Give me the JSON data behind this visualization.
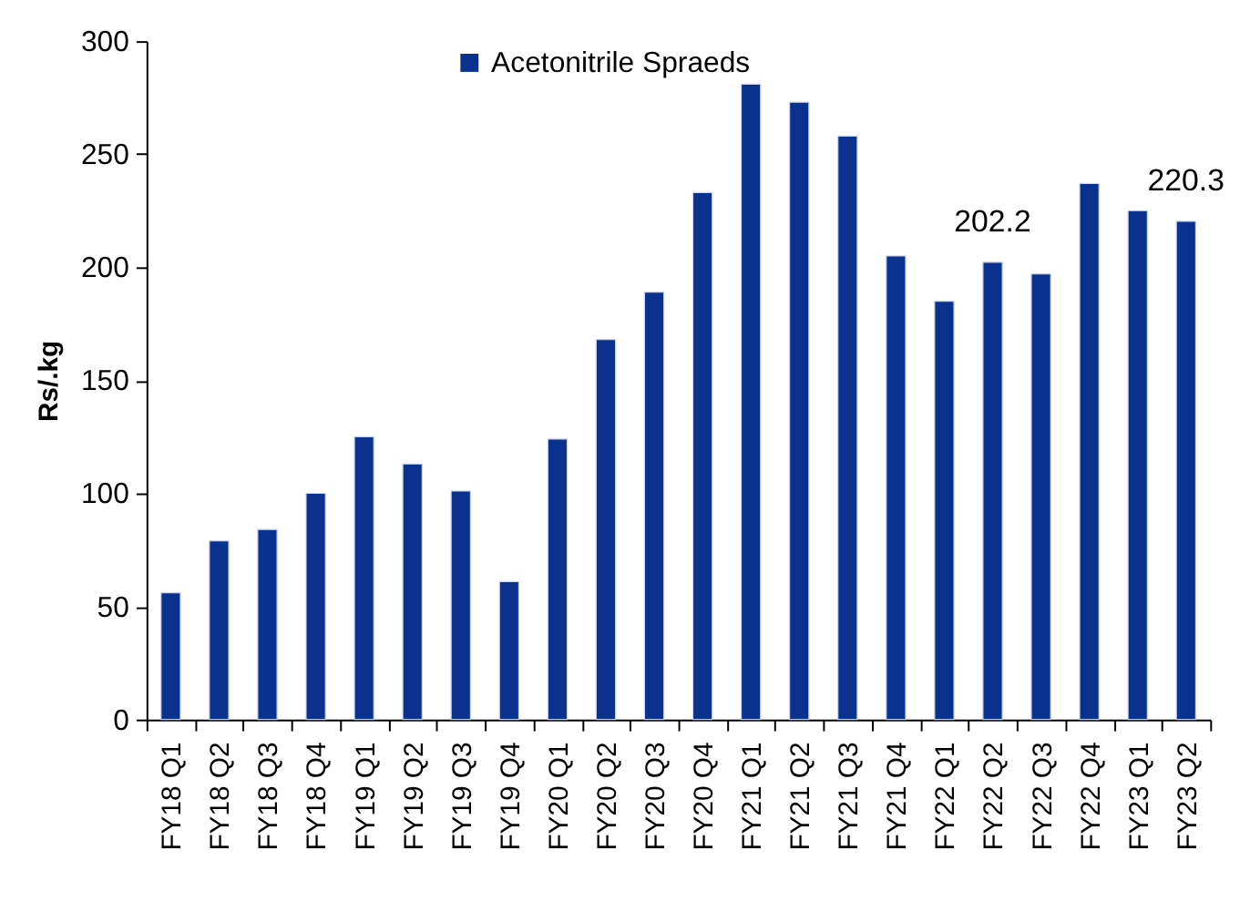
{
  "chart_data": {
    "type": "bar",
    "ylabel": "Rs/.kg",
    "categories": [
      "FY18 Q1",
      "FY18 Q2",
      "FY18 Q3",
      "FY18 Q4",
      "FY19 Q1",
      "FY19 Q2",
      "FY19 Q3",
      "FY19 Q4",
      "FY20 Q1",
      "FY20 Q2",
      "FY20 Q3",
      "FY20 Q4",
      "FY21 Q1",
      "FY21 Q2",
      "FY21 Q3",
      "FY21 Q4",
      "FY22 Q1",
      "FY22 Q2",
      "FY22 Q3",
      "FY22 Q4",
      "FY23 Q1",
      "FY23 Q2"
    ],
    "series": [
      {
        "name": "Acetonitrile Spraeds",
        "color": "#0b318f",
        "values": [
          56,
          79,
          84,
          100,
          125,
          113,
          101,
          61,
          124,
          168,
          189,
          233,
          281,
          273,
          258,
          205,
          185,
          202.2,
          197,
          237,
          225,
          220.3
        ],
        "value_labels": [
          null,
          null,
          null,
          null,
          null,
          null,
          null,
          null,
          null,
          null,
          null,
          null,
          null,
          null,
          null,
          null,
          null,
          "202.2",
          null,
          null,
          null,
          "220.3"
        ]
      }
    ],
    "ylim": [
      0,
      300
    ],
    "yticks": [
      0,
      50,
      100,
      150,
      200,
      250,
      300
    ],
    "legend": "top"
  }
}
